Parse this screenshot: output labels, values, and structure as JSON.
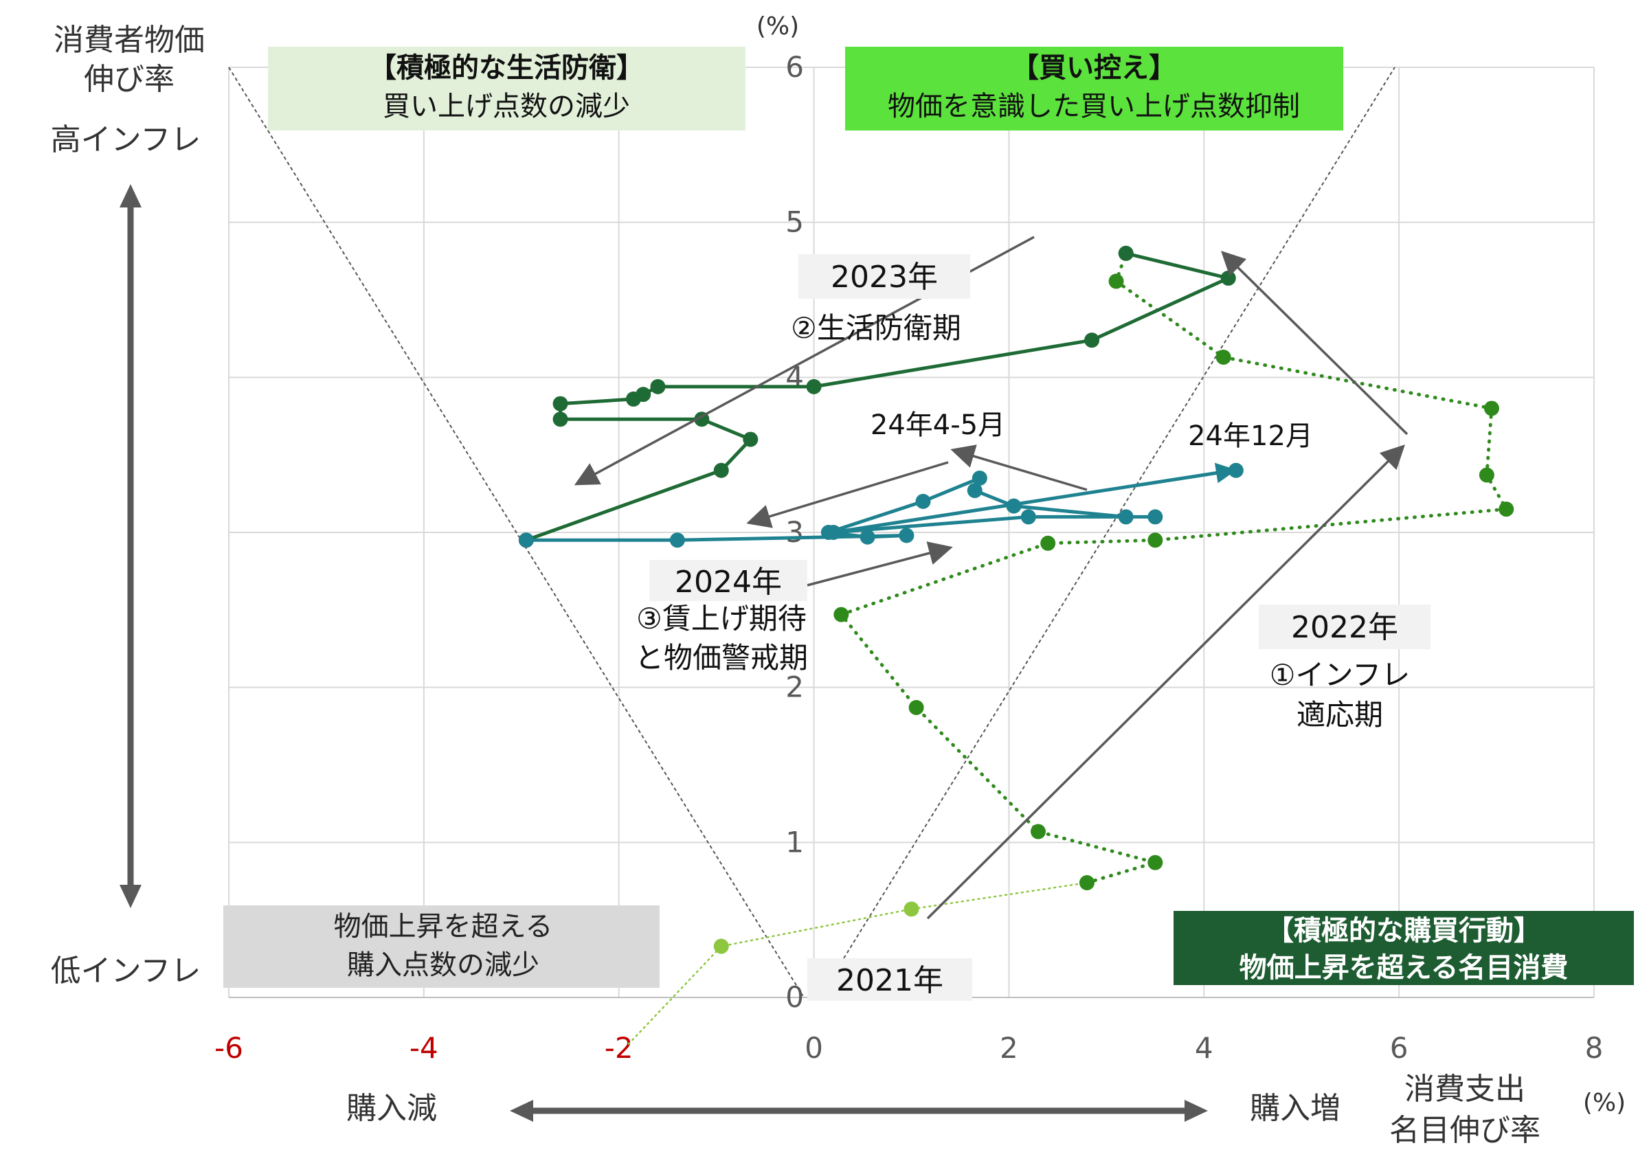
{
  "chart_data": {
    "type": "line",
    "x_unit": "(%)",
    "y_unit": "(%)",
    "x_title": [
      "消費支出",
      "名目伸び率"
    ],
    "y_title": [
      "消費者物価",
      "伸び率"
    ],
    "y_high": "高インフレ",
    "y_low": "低インフレ",
    "x_left": "購入減",
    "x_right": "購入増",
    "xlim": [
      -6,
      8
    ],
    "ylim": [
      0,
      6
    ],
    "x_ticks": [
      -6,
      -4,
      -2,
      0,
      2,
      4,
      6,
      8
    ],
    "y_ticks": [
      0,
      1,
      2,
      3,
      4,
      5,
      6
    ],
    "grid": true,
    "series": [
      {
        "style": "dotted",
        "color": "#8dc63f",
        "points": [
          [
            -1.9,
            -0.3
          ],
          [
            -0.95,
            0.33
          ],
          [
            1.0,
            0.57
          ],
          [
            2.8,
            0.74
          ]
        ]
      },
      {
        "style": "dotted",
        "color": "#2f8a1c",
        "points": [
          [
            2.8,
            0.74
          ],
          [
            3.5,
            0.87
          ],
          [
            2.3,
            1.07
          ],
          [
            1.05,
            1.87
          ],
          [
            0.28,
            2.47
          ],
          [
            2.4,
            2.93
          ],
          [
            3.5,
            2.95
          ],
          [
            7.1,
            3.15
          ],
          [
            6.9,
            3.37
          ],
          [
            6.95,
            3.8
          ],
          [
            4.2,
            4.13
          ],
          [
            3.1,
            4.62
          ],
          [
            3.2,
            4.8
          ]
        ]
      },
      {
        "style": "solid",
        "color": "#1f6b35",
        "points": [
          [
            3.2,
            4.8
          ],
          [
            4.25,
            4.64
          ],
          [
            2.85,
            4.24
          ],
          [
            0.0,
            3.94
          ],
          [
            -1.6,
            3.94
          ],
          [
            -1.75,
            3.89
          ],
          [
            -1.85,
            3.86
          ],
          [
            -2.6,
            3.83
          ],
          [
            -2.6,
            3.73
          ],
          [
            -1.15,
            3.73
          ],
          [
            -0.65,
            3.6
          ],
          [
            -0.95,
            3.4
          ],
          [
            -2.95,
            2.95
          ]
        ]
      },
      {
        "style": "solid",
        "color": "#1f8290",
        "points": [
          [
            -2.95,
            2.95
          ],
          [
            -1.4,
            2.95
          ],
          [
            0.95,
            2.98
          ],
          [
            0.55,
            2.97
          ],
          [
            0.15,
            3.0
          ],
          [
            1.12,
            3.2
          ],
          [
            1.7,
            3.35
          ],
          [
            1.65,
            3.27
          ],
          [
            2.05,
            3.17
          ],
          [
            3.2,
            3.1
          ],
          [
            3.5,
            3.1
          ],
          [
            2.2,
            3.1
          ],
          [
            0.2,
            3.0
          ],
          [
            4.3,
            3.4
          ]
        ]
      }
    ],
    "annotations": {
      "quad_tl_title": "【積極的な生活防衛】",
      "quad_tl_sub": "買い上げ点数の減少",
      "quad_tr_title": "【買い控え】",
      "quad_tr_sub": "物価を意識した買い上げ点数抑制",
      "quad_bl_line1": "物価上昇を超える",
      "quad_bl_line2": "購入点数の減少",
      "quad_br_line1": "【積極的な購買行動】",
      "quad_br_line2": "物価上昇を超える名目消費",
      "label_2021": "2021年",
      "label_2022_year": "2022年",
      "label_2022_line1": "①インフレ",
      "label_2022_line2": "適応期",
      "label_2023_year": "2023年",
      "label_2023_desc": "②生活防衛期",
      "label_2024_year": "2024年",
      "label_2024_line1": "③賃上げ期待",
      "label_2024_line2": "と物価警戒期",
      "label_24_45": "24年4-5月",
      "label_24_12": "24年12月"
    },
    "colors": {
      "axis_text": "#595959",
      "negative_tick": "#c00000",
      "arrow": "#595959",
      "tl_box": "#e2f0d9",
      "tr_box": "#5ce23d",
      "bl_box": "#d9d9d9",
      "br_box": "#1e5c32",
      "year_box": "#f2f2f2",
      "gridline": "#d9d9d9"
    }
  }
}
